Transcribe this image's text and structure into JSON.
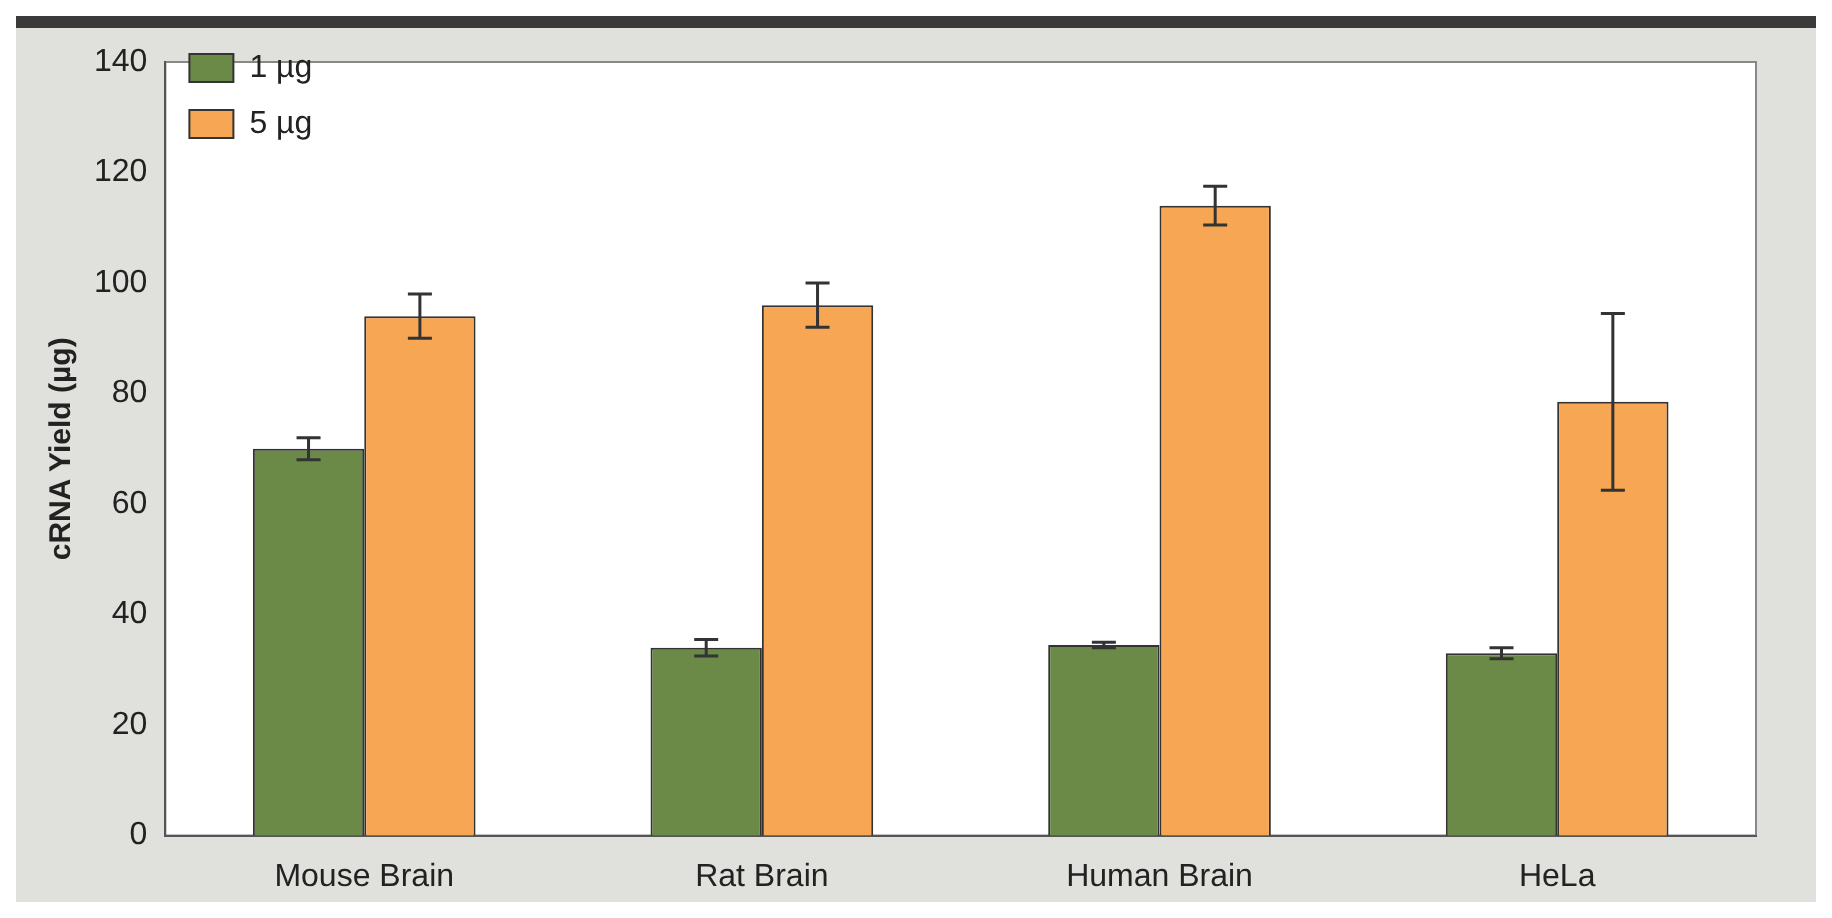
{
  "chart_data": {
    "type": "bar",
    "ylabel": "cRNA Yield (µg)",
    "categories": [
      "Mouse Brain",
      "Rat Brain",
      "Human Brain",
      "HeLa"
    ],
    "series": [
      {
        "name": "1 µg",
        "color": "#6b8a48",
        "values": [
          70,
          34,
          34.5,
          33
        ],
        "errors": [
          2,
          1.5,
          0.5,
          1
        ]
      },
      {
        "name": "5 µg",
        "color": "#f7a653",
        "values": [
          94,
          96,
          114,
          78.5
        ],
        "errors": [
          4,
          4,
          3.5,
          16
        ]
      }
    ],
    "ylim": [
      0,
      140
    ],
    "yticks": [
      0,
      20,
      40,
      60,
      80,
      100,
      120,
      140
    ],
    "grid": false,
    "legend": "top left"
  }
}
